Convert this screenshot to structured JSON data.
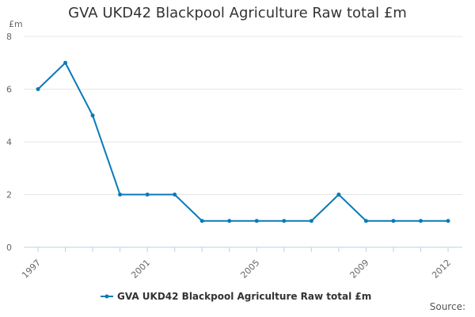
{
  "chart_data": {
    "type": "line",
    "title": "GVA UKD42 Blackpool Agriculture Raw total £m",
    "ylabel": "£m",
    "xlabel": "",
    "x": [
      1997,
      1998,
      1999,
      2000,
      2001,
      2002,
      2003,
      2004,
      2005,
      2006,
      2007,
      2008,
      2009,
      2010,
      2011,
      2012
    ],
    "x_tick_labels": [
      "1997",
      "2001",
      "2005",
      "2009",
      "2012"
    ],
    "ylim": [
      0,
      8
    ],
    "y_ticks": [
      0,
      2,
      4,
      6,
      8
    ],
    "grid": true,
    "legend_position": "bottom-center",
    "series": [
      {
        "name": "GVA UKD42 Blackpool Agriculture Raw total £m",
        "color": "#0a7ab8",
        "values": [
          6,
          7,
          5,
          2,
          2,
          2,
          1,
          1,
          1,
          1,
          1,
          2,
          1,
          1,
          1,
          1
        ]
      }
    ]
  },
  "footer": {
    "source_label": "Source:"
  }
}
